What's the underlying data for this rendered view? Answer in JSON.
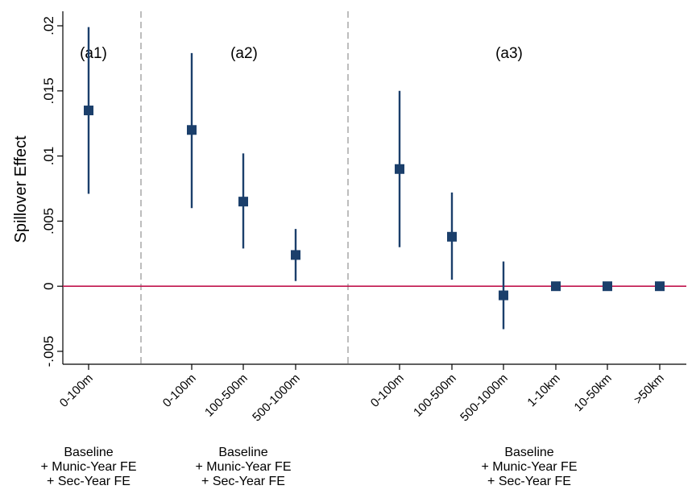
{
  "chart_data": {
    "type": "scatter",
    "ylabel": "Spillover Effect",
    "xlabel": "",
    "ylim": [
      -0.0058,
      0.021
    ],
    "yticks": [
      {
        "value": 0.02,
        "label": ".02"
      },
      {
        "value": 0.015,
        "label": ".015"
      },
      {
        "value": 0.01,
        "label": ".01"
      },
      {
        "value": 0.005,
        "label": ".005"
      },
      {
        "value": 0.0,
        "label": "0"
      },
      {
        "value": -0.005,
        "label": "-.005"
      }
    ],
    "reference_line": {
      "y": 0,
      "color": "#c0144c"
    },
    "marker_color": "#1b3f6b",
    "divider_color": "#bdbdbd",
    "panels": [
      {
        "label": "(a1)",
        "spec": [
          "Baseline",
          "+ Munic-Year FE",
          "+ Sec-Year FE"
        ],
        "points": [
          {
            "x": "0-100m",
            "y": 0.0135,
            "ci": [
              0.0071,
              0.0199
            ]
          }
        ]
      },
      {
        "label": "(a2)",
        "spec": [
          "Baseline",
          "+ Munic-Year FE",
          "+ Sec-Year FE"
        ],
        "points": [
          {
            "x": "0-100m",
            "y": 0.012,
            "ci": [
              0.006,
              0.0179
            ]
          },
          {
            "x": "100-500m",
            "y": 0.0065,
            "ci": [
              0.0029,
              0.0102
            ]
          },
          {
            "x": "500-1000m",
            "y": 0.0024,
            "ci": [
              0.0004,
              0.0044
            ]
          }
        ]
      },
      {
        "label": "(a3)",
        "spec": [
          "Baseline",
          "+ Munic-Year FE",
          "+ Sec-Year FE"
        ],
        "points": [
          {
            "x": "0-100m",
            "y": 0.009,
            "ci": [
              0.003,
              0.015
            ]
          },
          {
            "x": "100-500m",
            "y": 0.0038,
            "ci": [
              0.0005,
              0.0072
            ]
          },
          {
            "x": "500-1000m",
            "y": -0.0007,
            "ci": [
              -0.0033,
              0.0019
            ]
          },
          {
            "x": "1-10km",
            "y": 0.0,
            "ci": [
              -0.0002,
              0.0002
            ]
          },
          {
            "x": "10-50km",
            "y": 0.0,
            "ci": [
              -0.0002,
              0.0002
            ]
          },
          {
            "x": ">50km",
            "y": 0.0,
            "ci": [
              -0.0002,
              0.0002
            ]
          }
        ]
      }
    ]
  }
}
